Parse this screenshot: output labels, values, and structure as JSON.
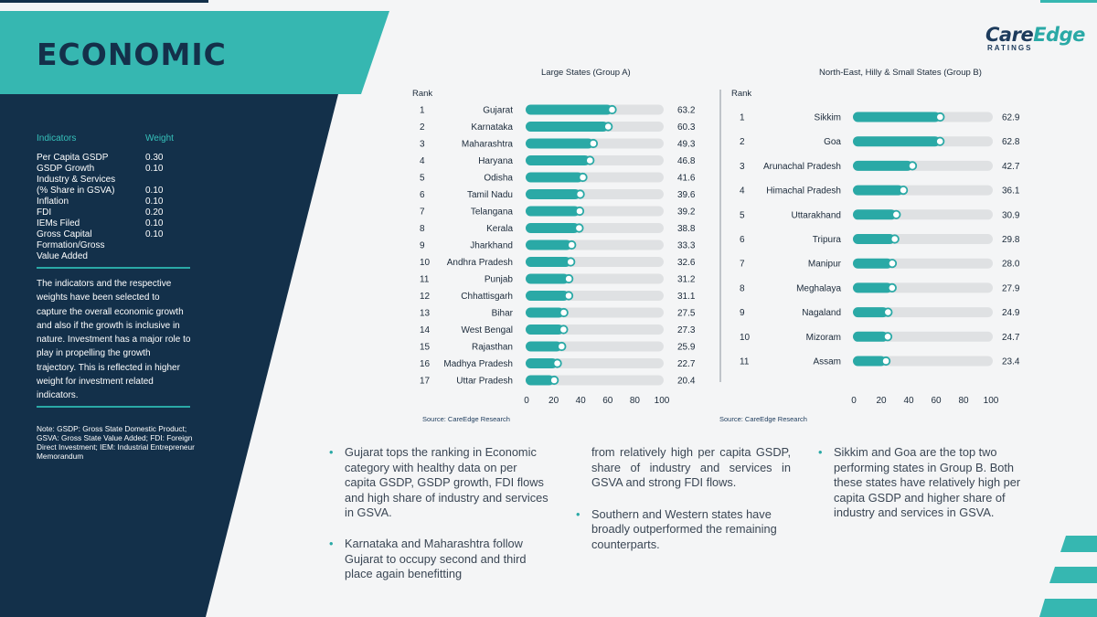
{
  "page": {
    "title": "ECONOMIC",
    "logo": {
      "part1": "Care",
      "part2": "Edge",
      "sub": "RATINGS"
    }
  },
  "indicators": {
    "header": {
      "name": "Indicators",
      "weight": "Weight"
    },
    "rows": [
      {
        "name": "Per Capita GSDP",
        "weight": "0.30"
      },
      {
        "name": "GSDP Growth",
        "weight": "0.10"
      },
      {
        "name": "Industry & Services",
        "weight": ""
      },
      {
        "name": "(% Share in GSVA)",
        "weight": "0.10"
      },
      {
        "name": "Inflation",
        "weight": "0.10"
      },
      {
        "name": "FDI",
        "weight": "0.20"
      },
      {
        "name": "IEMs Filed",
        "weight": "0.10"
      },
      {
        "name": "Gross Capital",
        "weight": "0.10"
      },
      {
        "name": "Formation/Gross",
        "weight": ""
      },
      {
        "name": "Value Added",
        "weight": ""
      }
    ],
    "description": "The indicators and the respective weights have been selected to capture the overall economic growth and also if the growth is inclusive in nature. Investment has a major role to play in propelling the growth trajectory. This is reflected in higher weight for investment related indicators.",
    "note": "Note: GSDP: Gross State Domestic Product; GSVA: Gross State Value Added; FDI: Foreign Direct Investment; IEM: Industrial Entrepreneur Memorandum"
  },
  "chart_data": [
    {
      "type": "bar",
      "orientation": "horizontal",
      "title": "Large States (Group A)",
      "rank_label": "Rank",
      "source": "Source: CareEdge Research",
      "xlim": [
        0,
        100
      ],
      "xticks": [
        0,
        20,
        40,
        60,
        80,
        100
      ],
      "ranks": [
        1,
        2,
        3,
        4,
        5,
        6,
        7,
        8,
        9,
        10,
        11,
        12,
        13,
        14,
        15,
        16,
        17
      ],
      "categories": [
        "Gujarat",
        "Karnataka",
        "Maharashtra",
        "Haryana",
        "Odisha",
        "Tamil Nadu",
        "Telangana",
        "Kerala",
        "Jharkhand",
        "Andhra Pradesh",
        "Punjab",
        "Chhattisgarh",
        "Bihar",
        "West Bengal",
        "Rajasthan",
        "Madhya Pradesh",
        "Uttar Pradesh"
      ],
      "values": [
        63.2,
        60.3,
        49.3,
        46.8,
        41.6,
        39.6,
        39.2,
        38.8,
        33.3,
        32.6,
        31.2,
        31.1,
        27.5,
        27.3,
        25.9,
        22.7,
        20.4
      ],
      "value_labels": [
        "63.2",
        "60.3",
        "49.3",
        "46.8",
        "41.6",
        "39.6",
        "39.2",
        "38.8",
        "33.3",
        "32.6",
        "31.2",
        "31.1",
        "27.5",
        "27.3",
        "25.9",
        "22.7",
        "20.4"
      ],
      "colors": {
        "bar": "#2aa9a6",
        "track": "#dfe1e3",
        "marker": "#ffffff"
      }
    },
    {
      "type": "bar",
      "orientation": "horizontal",
      "title": "North-East, Hilly & Small States (Group B)",
      "rank_label": "Rank",
      "source": "Source: CareEdge Research",
      "xlim": [
        0,
        100
      ],
      "xticks": [
        0,
        20,
        40,
        60,
        80,
        100
      ],
      "ranks": [
        1,
        2,
        3,
        4,
        5,
        6,
        7,
        8,
        9,
        10,
        11
      ],
      "categories": [
        "Sikkim",
        "Goa",
        "Arunachal Pradesh",
        "Himachal Pradesh",
        "Uttarakhand",
        "Tripura",
        "Manipur",
        "Meghalaya",
        "Nagaland",
        "Mizoram",
        "Assam"
      ],
      "values": [
        62.9,
        62.8,
        42.7,
        36.1,
        30.9,
        29.8,
        28.0,
        27.9,
        24.9,
        24.7,
        23.4
      ],
      "value_labels": [
        "62.9",
        "62.8",
        "42.7",
        "36.1",
        "30.9",
        "29.8",
        "28.0",
        "27.9",
        "24.9",
        "24.7",
        "23.4"
      ],
      "colors": {
        "bar": "#2aa9a6",
        "track": "#dfe1e3",
        "marker": "#ffffff"
      }
    }
  ],
  "bullets": {
    "b1": "Gujarat tops the ranking in Economic category with healthy data on per capita GSDP, GSDP growth, FDI flows and high share of industry and services in GSVA.",
    "b2": "Karnataka and Maharashtra follow Gujarat to occupy second and third place again benefitting",
    "b2_cont": "from relatively high per capita GSDP, share of industry and services in GSVA and strong FDI flows.",
    "b3": "Southern and Western states have broadly outperformed the remaining counterparts.",
    "b4": "Sikkim and Goa are the top two performing states in Group B. Both these states have relatively high per capita GSDP and higher share of industry and services in GSVA."
  },
  "theme": {
    "navy": "#13304a",
    "teal": "#36b7b1",
    "bullet": "#2aa9a6"
  }
}
